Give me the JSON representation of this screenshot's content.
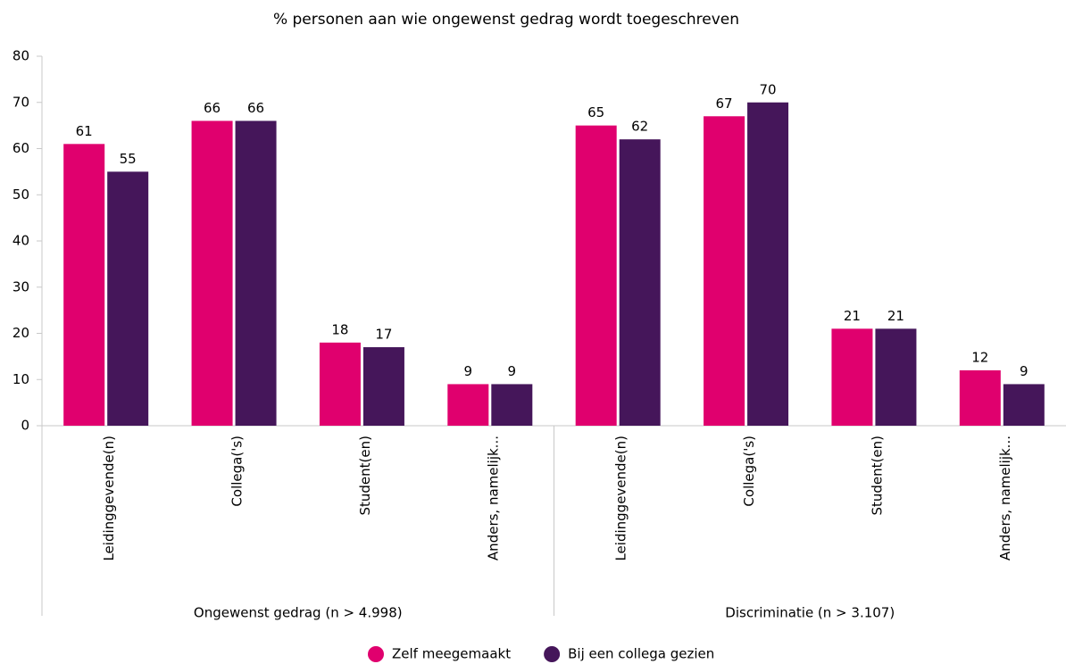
{
  "chart_data": {
    "type": "bar",
    "title": "% personen aan wie ongewenst gedrag wordt toegeschreven",
    "categories": [
      "Leidinggevende(n)",
      "Collega('s)",
      "Student(en)",
      "Anders, namelijk...",
      "Leidinggevende(n)",
      "Collega('s)",
      "Student(en)",
      "Anders, namelijk..."
    ],
    "groups": [
      "Ongewenst gedrag (n > 4.998)",
      "Discriminatie (n > 3.107)"
    ],
    "series": [
      {
        "name": "Zelf meegemaakt",
        "color": "#e0006e",
        "values": [
          61,
          66,
          18,
          9,
          65,
          67,
          21,
          12
        ]
      },
      {
        "name": "Bij een collega gezien",
        "color": "#45165a",
        "values": [
          55,
          66,
          17,
          9,
          62,
          70,
          21,
          9
        ]
      }
    ],
    "ylim": [
      0,
      80
    ],
    "yticks": [
      0,
      10,
      20,
      30,
      40,
      50,
      60,
      70,
      80
    ],
    "grid": false,
    "legend": "bottom"
  }
}
